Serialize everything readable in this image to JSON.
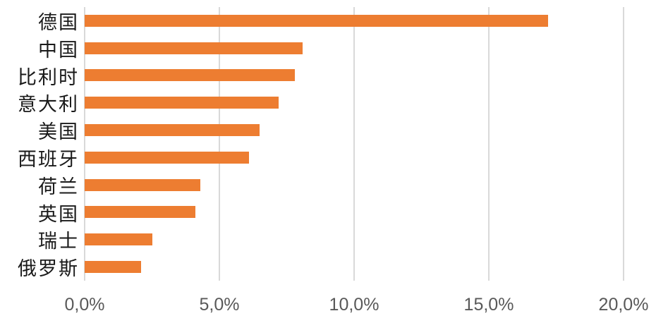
{
  "chart_data": {
    "type": "bar",
    "orientation": "horizontal",
    "title": "",
    "xlabel": "",
    "ylabel": "",
    "categories": [
      "德国",
      "中国",
      "比利时",
      "意大利",
      "美国",
      "西班牙",
      "荷兰",
      "英国",
      "瑞士",
      "俄罗斯"
    ],
    "values": [
      17.2,
      8.1,
      7.8,
      7.2,
      6.5,
      6.1,
      4.3,
      4.1,
      2.5,
      2.1
    ],
    "value_unit": "%",
    "xlim": [
      0,
      20
    ],
    "x_ticks": [
      {
        "value": 0,
        "label": "0,0%"
      },
      {
        "value": 5,
        "label": "5,0%"
      },
      {
        "value": 10,
        "label": "10,0%"
      },
      {
        "value": 15,
        "label": "15,0%"
      },
      {
        "value": 20,
        "label": "20,0%"
      }
    ],
    "grid": true,
    "legend": false,
    "colors": {
      "bar": "#ED7D31",
      "gridline": "#D9D9D9",
      "axis_line": "#D9D9D9",
      "tick_label": "#595959",
      "category_label": "#1a1a1a",
      "background": "#ffffff"
    }
  }
}
